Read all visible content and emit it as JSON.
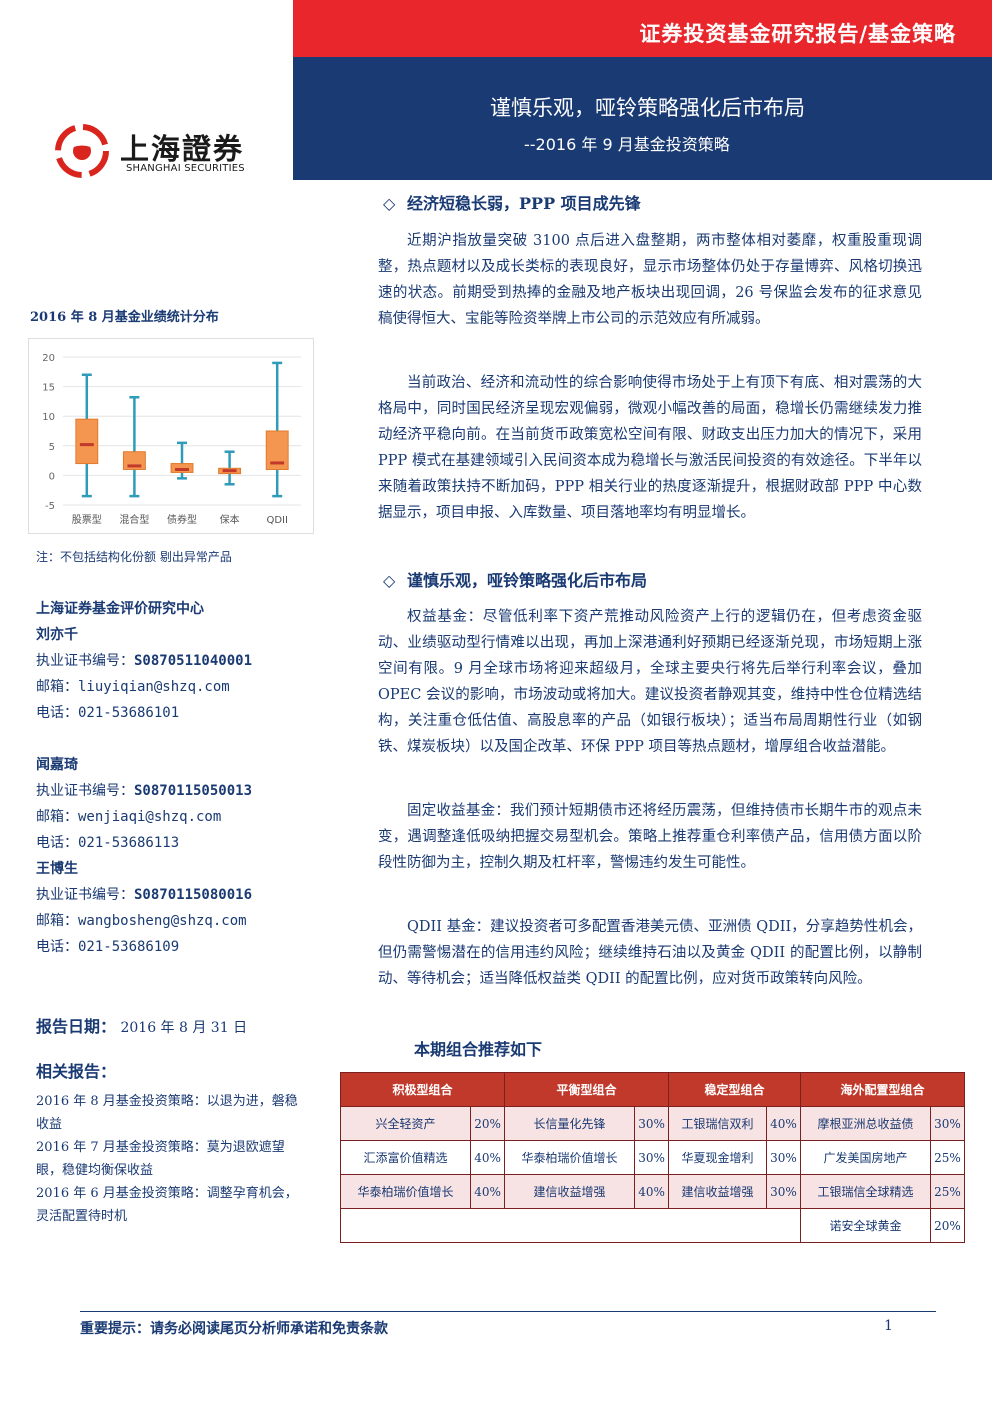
{
  "header": {
    "series": "证券投资基金研究报告/基金策略",
    "title": "谨慎乐观，哑铃策略强化后市布局",
    "subtitle": "--2016 年 9 月基金投资策略",
    "accent_red": "#e8262c",
    "accent_navy": "#1a3a73"
  },
  "logo": {
    "cn": "上海證券",
    "en": "SHANGHAI SECURITIES"
  },
  "chart_title": "2016 年 8 月基金业绩统计分布",
  "chart_note": "注：不包括结构化份额 剔出异常产品",
  "chart_data": {
    "type": "boxplot",
    "categories": [
      "股票型",
      "混合型",
      "债券型",
      "保本",
      "QDII"
    ],
    "ylim": [
      -5,
      20
    ],
    "yticks": [
      "20",
      "15",
      "10",
      "5",
      "0",
      "-5"
    ],
    "series": [
      {
        "min": -3.5,
        "q1": 2.0,
        "median": 5.2,
        "q3": 9.5,
        "max": 17.0
      },
      {
        "min": -3.5,
        "q1": 1.0,
        "median": 1.6,
        "q3": 4.0,
        "max": 13.2
      },
      {
        "min": -0.5,
        "q1": 0.5,
        "median": 1.0,
        "q3": 2.0,
        "max": 5.5
      },
      {
        "min": -1.5,
        "q1": 0.3,
        "median": 0.8,
        "q3": 1.2,
        "max": 4.0
      },
      {
        "min": -3.5,
        "q1": 1.0,
        "median": 2.1,
        "q3": 7.5,
        "max": 19.0
      }
    ],
    "box_color": "#f4964f",
    "whisker_color": "#2e9cb8",
    "median_color": "#c0392b"
  },
  "research_center": "上海证券基金评价研究中心",
  "analysts": [
    {
      "name": "刘亦千",
      "cert_label": "执业证书编号：",
      "cert": "S0870511040001",
      "email_label": "邮箱：",
      "email": "liuyiqian@shzq.com",
      "phone_label": "电话：",
      "phone": "021-53686101"
    },
    {
      "name": "闻嘉琦",
      "cert_label": "执业证书编号：",
      "cert": "S0870115050013",
      "email_label": "邮箱：",
      "email": "wenjiaqi@shzq.com",
      "phone_label": "电话：",
      "phone": "021-53686113"
    },
    {
      "name": "王博生",
      "cert_label": "执业证书编号：",
      "cert": "S0870115080016",
      "email_label": "邮箱：",
      "email": "wangbosheng@shzq.com",
      "phone_label": "电话：",
      "phone": "021-53686109"
    }
  ],
  "report_date_label": "报告日期：",
  "report_date": "2016 年 8 月 31 日",
  "related_title": "相关报告：",
  "related_reports": [
    "2016 年 8 月基金投资策略：以退为进，磐稳收益",
    "2016 年 7 月基金投资策略：莫为退欧遮望眼，稳健均衡保收益",
    "2016 年 6 月基金投资策略：调整孕育机会，灵活配置待时机"
  ],
  "sections": [
    {
      "heading": "经济短稳长弱，PPP 项目成先锋",
      "paragraphs": [
        "近期沪指放量突破 3100 点后进入盘整期，两市整体相对萎靡，权重股重现调整，热点题材以及成长类标的表现良好，显示市场整体仍处于存量博弈、风格切换迅速的状态。前期受到热捧的金融及地产板块出现回调，26 号保监会发布的征求意见稿使得恒大、宝能等险资举牌上市公司的示范效应有所减弱。",
        "当前政治、经济和流动性的综合影响使得市场处于上有顶下有底、相对震荡的大格局中，同时国民经济呈现宏观偏弱，微观小幅改善的局面，稳增长仍需继续发力推动经济平稳向前。在当前货币政策宽松空间有限、财政支出压力加大的情况下，采用 PPP 模式在基建领域引入民间资本成为稳增长与激活民间投资的有效途径。下半年以来随着政策扶持不断加码，PPP 相关行业的热度逐渐提升，根据财政部 PPP 中心数据显示，项目申报、入库数量、项目落地率均有明显增长。"
      ]
    },
    {
      "heading": "谨慎乐观，哑铃策略强化后市布局",
      "paragraphs": [
        "权益基金：尽管低利率下资产荒推动风险资产上行的逻辑仍在，但考虑资金驱动、业绩驱动型行情难以出现，再加上深港通利好预期已经逐渐兑现，市场短期上涨空间有限。9 月全球市场将迎来超级月，全球主要央行将先后举行利率会议，叠加 OPEC 会议的影响，市场波动或将加大。建议投资者静观其变，维持中性仓位精选结构，关注重仓低估值、高股息率的产品（如银行板块）；适当布局周期性行业（如钢铁、煤炭板块）以及国企改革、环保 PPP 项目等热点题材，增厚组合收益潜能。",
        "固定收益基金：我们预计短期债市还将经历震荡，但维持债市长期牛市的观点未变，遇调整逢低吸纳把握交易型机会。策略上推荐重仓利率债产品，信用债方面以阶段性防御为主，控制久期及杠杆率，警惕违约发生可能性。",
        "QDII 基金：建议投资者可多配置香港美元债、亚洲债 QDII，分享趋势性机会，但仍需警惕潜在的信用违约风险；继续维持石油以及黄金 QDII 的配置比例，以静制动、等待机会；适当降低权益类 QDII 的配置比例，应对货币政策转向风险。"
      ]
    }
  ],
  "portfolio_title": "本期组合推荐如下",
  "portfolio": {
    "headers": [
      "积极型组合",
      "平衡型组合",
      "稳定型组合",
      "海外配置型组合"
    ],
    "rows": [
      [
        [
          "兴全轻资产",
          "20%"
        ],
        [
          "长信量化先锋",
          "30%"
        ],
        [
          "工银瑞信双利",
          "40%"
        ],
        [
          "摩根亚洲总收益债",
          "30%"
        ]
      ],
      [
        [
          "汇添富价值精选",
          "40%"
        ],
        [
          "华泰柏瑞价值增长",
          "30%"
        ],
        [
          "华夏现金增利",
          "30%"
        ],
        [
          "广发美国房地产",
          "25%"
        ]
      ],
      [
        [
          "华泰柏瑞价值增长",
          "40%"
        ],
        [
          "建信收益增强",
          "40%"
        ],
        [
          "建信收益增强",
          "30%"
        ],
        [
          "工银瑞信全球精选",
          "25%"
        ]
      ],
      [
        [
          "",
          ""
        ],
        [
          "",
          ""
        ],
        [
          "",
          ""
        ],
        [
          "诺安全球黄金",
          "20%"
        ]
      ]
    ]
  },
  "footer": {
    "note": "重要提示：请务必阅读尾页分析师承诺和免责条款",
    "page": "1"
  }
}
